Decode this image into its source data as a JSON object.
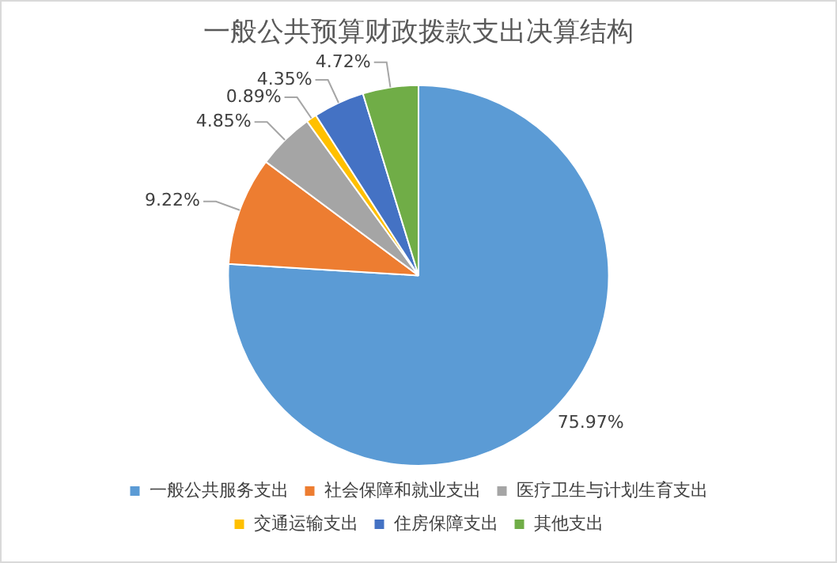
{
  "chart_data": {
    "type": "pie",
    "title": "一般公共预算财政拨款支出决算结构",
    "categories": [
      "一般公共服务支出",
      "社会保障和就业支出",
      "医疗卫生与计划生育支出",
      "交通运输支出",
      "住房保障支出",
      "其他支出"
    ],
    "values": [
      75.97,
      9.22,
      4.85,
      0.89,
      4.35,
      4.72
    ],
    "value_labels": [
      "75.97%",
      "9.22%",
      "4.85%",
      "0.89%",
      "4.35%",
      "4.72%"
    ],
    "colors": [
      "#5b9bd5",
      "#ed7d31",
      "#a5a5a5",
      "#ffc000",
      "#4472c4",
      "#70ad47"
    ],
    "legend": "bottom"
  }
}
